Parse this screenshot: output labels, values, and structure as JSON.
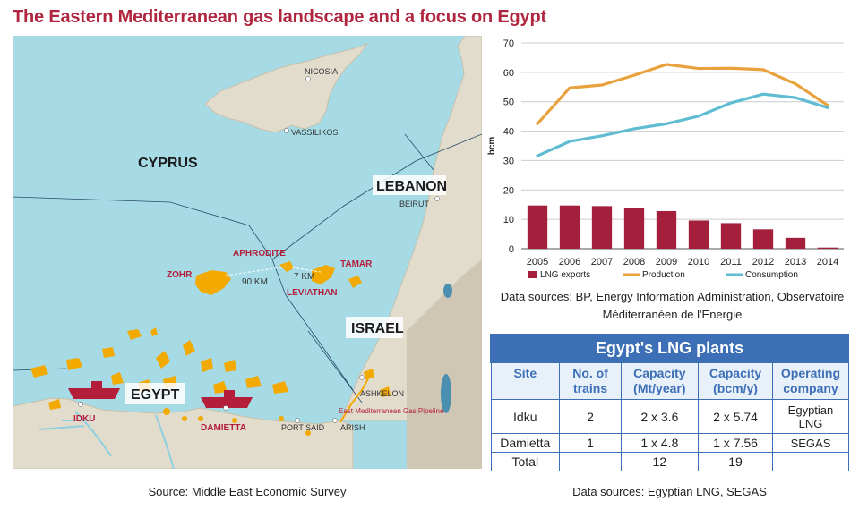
{
  "title": "The Eastern Mediterranean gas landscape and a focus on Egypt",
  "map": {
    "source": "Source: Middle East Economic Survey",
    "labels": {
      "cyprus": "CYPRUS",
      "lebanon": "LEBANON",
      "israel": "ISRAEL",
      "egypt": "EGYPT",
      "nicosia": "NICOSIA",
      "vassilikos": "VASSILIKOS",
      "beirut": "BEIRUT",
      "ashkelon": "ASHKELON",
      "port_said": "PORT SAID",
      "arish": "ARISH",
      "pipeline": "East Mediterranean Gas Pipeline",
      "aphrodite": "APHRODITE",
      "tamar": "TAMAR",
      "leviathan": "LEVIATHAN",
      "zohr": "ZOHR",
      "idku": "IDKU",
      "damietta": "DAMIETTA",
      "dist_90": "90 KM",
      "dist_7": "7 KM"
    },
    "colors": {
      "sea": "#a6dbe6",
      "land": "#e2dccd",
      "field": "#f2a900",
      "ship": "#b41e3b",
      "label_red": "#b41e3b"
    }
  },
  "chart_data": {
    "type": "bar+line",
    "categories": [
      "2005",
      "2006",
      "2007",
      "2008",
      "2009",
      "2010",
      "2011",
      "2012",
      "2013",
      "2014"
    ],
    "ylabel": "bcm",
    "ylim": [
      0,
      70
    ],
    "yticks": [
      "0",
      "10",
      "20",
      "30",
      "40",
      "50",
      "60",
      "70"
    ],
    "grid": true,
    "legend_position": "bottom",
    "series": [
      {
        "name": "LNG exports",
        "type": "bar",
        "color": "#a41f3c",
        "values": [
          14.7,
          14.7,
          14.5,
          13.9,
          12.8,
          9.6,
          8.7,
          6.6,
          3.7,
          0.4
        ]
      },
      {
        "name": "Production",
        "type": "line",
        "color": "#e8a13c",
        "values": [
          42.5,
          54.7,
          55.7,
          59.0,
          62.7,
          61.3,
          61.4,
          60.9,
          56.1,
          48.8
        ]
      },
      {
        "name": "Consumption",
        "type": "line",
        "color": "#5fbcd3",
        "values": [
          31.6,
          36.5,
          38.4,
          40.8,
          42.5,
          45.1,
          49.6,
          52.6,
          51.4,
          48.0
        ]
      }
    ]
  },
  "chart_source": {
    "line1": "Data sources: BP, Energy Information Administration, Observatoire",
    "line2": "Méditerranéen de l'Energie"
  },
  "lng_table": {
    "title": "Egypt's LNG plants",
    "headers": {
      "site": "Site",
      "trains_1": "No. of",
      "trains_2": "trains",
      "mt_1": "Capacity",
      "mt_2": "(Mt/year)",
      "bcm_1": "Capacity",
      "bcm_2": "(bcm/y)",
      "op_1": "Operating",
      "op_2": "company"
    },
    "rows": [
      {
        "site": "Idku",
        "trains": "2",
        "mt": "2 x 3.6",
        "bcm": "2 x 5.74",
        "op_1": "Egyptian",
        "op_2": "LNG"
      },
      {
        "site": "Damietta",
        "trains": "1",
        "mt": "1 x 4.8",
        "bcm": "1 x 7.56",
        "op_1": "SEGAS",
        "op_2": ""
      }
    ],
    "total": {
      "label": "Total",
      "mt": "12",
      "bcm": "19"
    },
    "source": "Data sources: Egyptian LNG, SEGAS"
  }
}
